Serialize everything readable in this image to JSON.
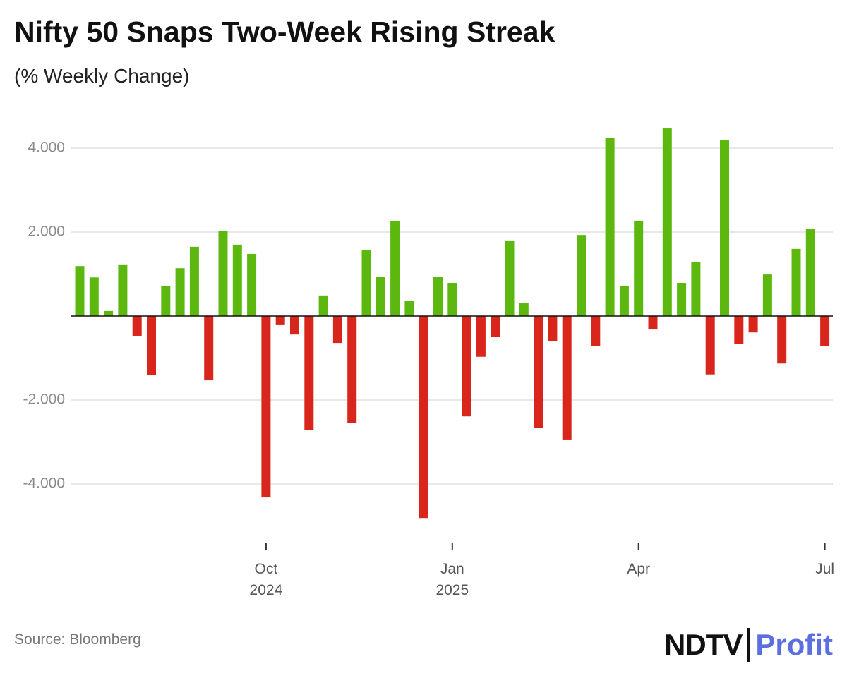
{
  "chart_data": {
    "type": "bar",
    "title": "Nifty 50 Snaps Two-Week Rising Streak",
    "subtitle": "(% Weekly Change)",
    "source": "Source: Bloomberg",
    "brand": [
      "NDTV",
      "Profit"
    ],
    "categories": [
      null,
      null,
      null,
      null,
      null,
      null,
      null,
      null,
      null,
      null,
      null,
      null,
      null,
      "Oct 2024",
      null,
      null,
      null,
      null,
      null,
      null,
      null,
      null,
      null,
      null,
      null,
      null,
      "Jan 2025",
      null,
      null,
      null,
      null,
      null,
      null,
      null,
      null,
      null,
      null,
      null,
      null,
      "Apr",
      null,
      null,
      null,
      null,
      null,
      null,
      null,
      null,
      null,
      null,
      null,
      null,
      "Jul"
    ],
    "values": [
      1.19,
      0.92,
      0.12,
      1.23,
      -0.47,
      -1.41,
      0.71,
      1.14,
      1.65,
      -1.53,
      2.02,
      1.7,
      1.48,
      -4.32,
      -0.2,
      -0.44,
      -2.71,
      0.49,
      -0.64,
      -2.55,
      1.58,
      0.94,
      2.27,
      0.37,
      -4.81,
      0.94,
      0.79,
      -2.39,
      -0.97,
      -0.49,
      1.8,
      0.32,
      -2.67,
      -0.59,
      -2.94,
      1.93,
      -0.71,
      4.25,
      0.72,
      2.27,
      -0.32,
      4.47,
      0.79,
      1.29,
      -1.39,
      4.2,
      -0.66,
      -0.39,
      0.99,
      -1.13,
      1.6,
      2.08,
      -0.71
    ],
    "positive_color": "#5cb80f",
    "negative_color": "#d8261c",
    "ylim": [
      -5.25,
      5
    ],
    "yticks": [
      {
        "value": -4,
        "label": "-4.000"
      },
      {
        "value": -2,
        "label": "-2.000"
      },
      {
        "value": 2,
        "label": "2.000"
      },
      {
        "value": 4,
        "label": "4.000"
      }
    ],
    "grid": true
  }
}
